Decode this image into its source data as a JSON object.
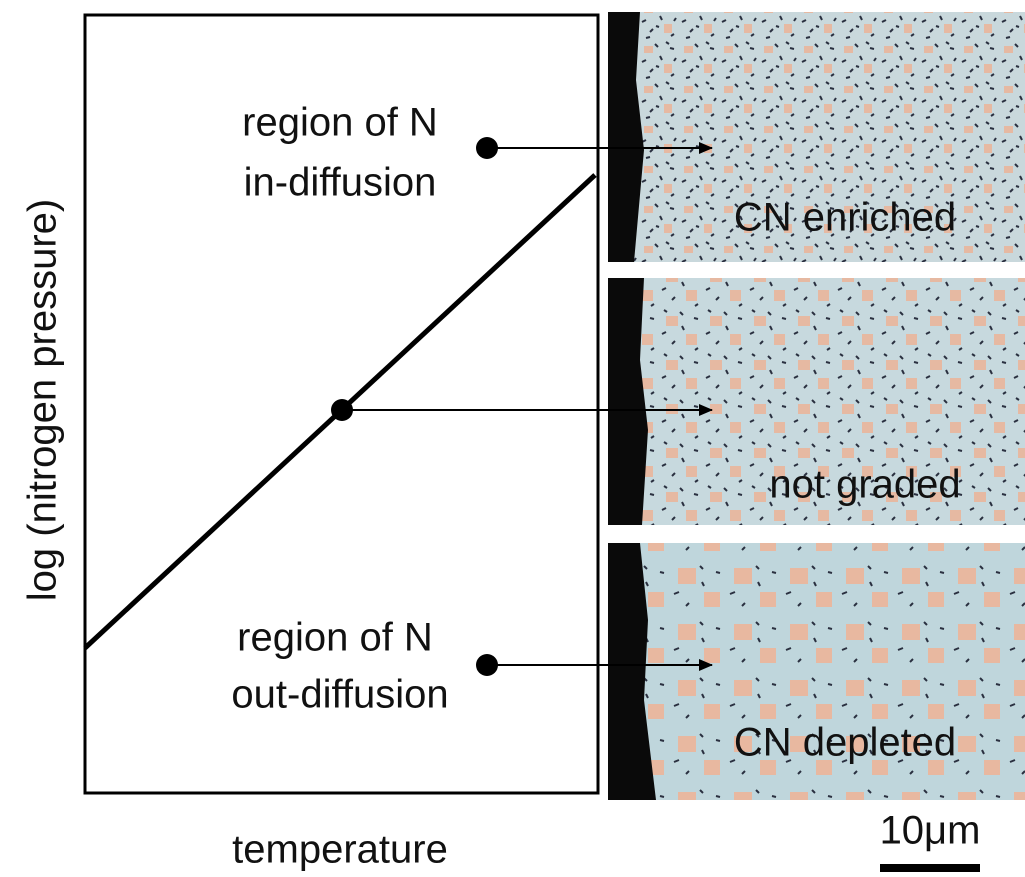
{
  "axes": {
    "y_label": "log (nitrogen pressure)",
    "x_label": "temperature"
  },
  "regions": [
    {
      "line1": "region of N",
      "line2": "in-diffusion"
    },
    {
      "line1": "region of N",
      "line2": "out-diffusion"
    }
  ],
  "panels": [
    "CN enriched",
    "not graded",
    "CN depleted"
  ],
  "scale_bar": "10μm"
}
